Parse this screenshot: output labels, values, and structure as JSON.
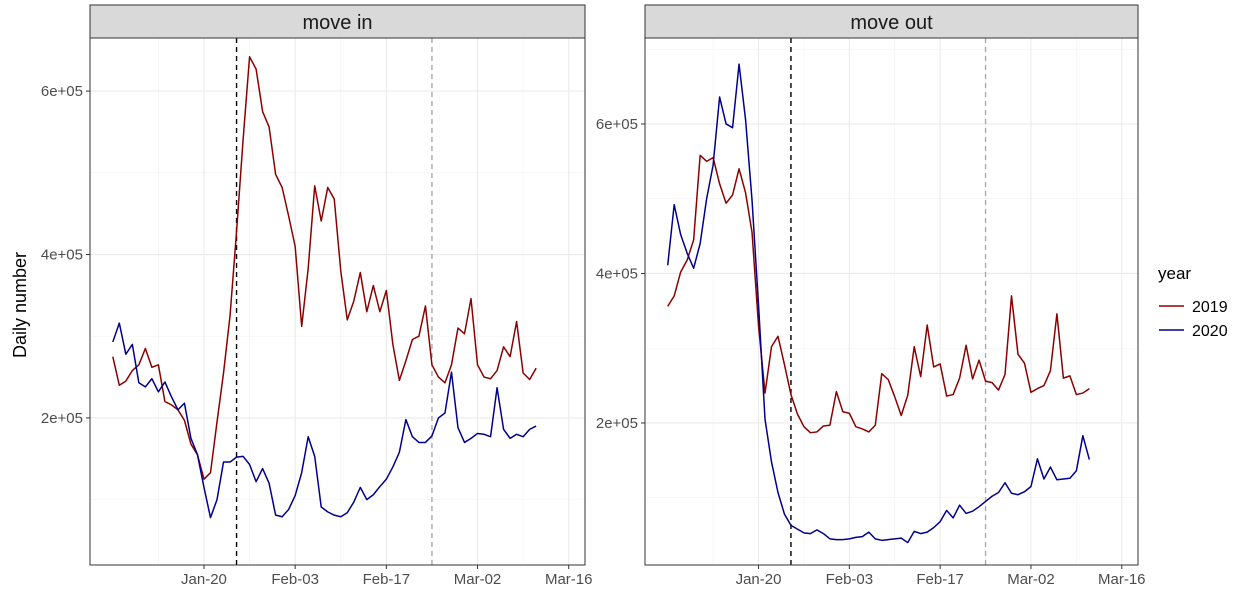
{
  "chart_data": {
    "type": "line",
    "ylabel": "Daily number",
    "legend": {
      "title": "year",
      "placement": "right",
      "entries": [
        {
          "name": "2019",
          "color": "#8B0000"
        },
        {
          "name": "2020",
          "color": "#00008B"
        }
      ]
    },
    "x_ticks": [
      {
        "label": "Jan-20",
        "day": 19
      },
      {
        "label": "Feb-03",
        "day": 33
      },
      {
        "label": "Feb-17",
        "day": 47
      },
      {
        "label": "Mar-02",
        "day": 61
      },
      {
        "label": "Mar-16",
        "day": 75
      }
    ],
    "xlim_day": [
      1.5,
      77.5
    ],
    "vlines": [
      {
        "day": 24,
        "color": "#000000",
        "style": "dashed"
      },
      {
        "day": 54,
        "color": "#AAAAAA",
        "style": "dashed"
      }
    ],
    "grid": true,
    "panels": [
      {
        "title": "move in",
        "ylim": [
          20000,
          665000
        ],
        "y_ticks": [
          {
            "label": "2e+05",
            "value": 200000
          },
          {
            "label": "4e+05",
            "value": 400000
          },
          {
            "label": "6e+05",
            "value": 600000
          }
        ],
        "series": [
          {
            "name": "2019",
            "color": "#8B0000",
            "start_day": 5,
            "values": [
              275000,
              240000,
              245000,
              258000,
              265000,
              285000,
              262000,
              265000,
              220000,
              216000,
              210000,
              197000,
              168000,
              155000,
              125000,
              133000,
              195000,
              255000,
              325000,
              428000,
              540000,
              642000,
              627000,
              575000,
              556000,
              498000,
              482000,
              447000,
              410000,
              312000,
              383000,
              484000,
              441000,
              482000,
              468000,
              380000,
              320000,
              343000,
              378000,
              330000,
              362000,
              330000,
              356000,
              290000,
              246000,
              270000,
              296000,
              300000,
              337000,
              265000,
              250000,
              243000,
              265000,
              310000,
              303000,
              346000,
              265000,
              250000,
              248000,
              258000,
              287000,
              275000,
              318000,
              255000,
              247000,
              261000
            ]
          },
          {
            "name": "2020",
            "color": "#00008B",
            "start_day": 5,
            "values": [
              293000,
              316000,
              278000,
              290000,
              243000,
              238000,
              248000,
              232000,
              244000,
              226000,
              210000,
              218000,
              175000,
              155000,
              115000,
              78000,
              100000,
              146000,
              146000,
              152000,
              153000,
              143000,
              122000,
              138000,
              120000,
              81000,
              79000,
              88000,
              105000,
              133000,
              177000,
              153000,
              91000,
              85000,
              81000,
              79000,
              84000,
              97000,
              115000,
              100000,
              106000,
              116000,
              125000,
              140000,
              158000,
              198000,
              177000,
              170000,
              170000,
              178000,
              200000,
              206000,
              256000,
              188000,
              170000,
              175000,
              181000,
              180000,
              177000,
              237000,
              186000,
              175000,
              180000,
              177000,
              186000,
              190000
            ]
          }
        ]
      },
      {
        "title": "move out",
        "ylim": [
          10000,
          715000
        ],
        "y_ticks": [
          {
            "label": "2e+05",
            "value": 200000
          },
          {
            "label": "4e+05",
            "value": 400000
          },
          {
            "label": "6e+05",
            "value": 600000
          }
        ],
        "series": [
          {
            "name": "2019",
            "color": "#8B0000",
            "start_day": 5,
            "values": [
              356000,
              370000,
              402000,
              418000,
              445000,
              558000,
              550000,
              555000,
              520000,
              494000,
              505000,
              540000,
              508000,
              455000,
              330000,
              240000,
              302000,
              316000,
              278000,
              238000,
              212000,
              195000,
              187000,
              188000,
              196000,
              197000,
              242000,
              215000,
              213000,
              195000,
              192000,
              188000,
              197000,
              266000,
              258000,
              235000,
              210000,
              237000,
              302000,
              262000,
              331000,
              275000,
              279000,
              236000,
              238000,
              260000,
              304000,
              259000,
              284000,
              256000,
              254000,
              244000,
              265000,
              370000,
              292000,
              280000,
              241000,
              246000,
              250000,
              270000,
              346000,
              260000,
              263000,
              238000,
              240000,
              246000
            ]
          },
          {
            "name": "2020",
            "color": "#00008B",
            "start_day": 5,
            "values": [
              411000,
              492000,
              452000,
              427000,
              407000,
              440000,
              500000,
              545000,
              636000,
              600000,
              595000,
              680000,
              606000,
              498000,
              358000,
              205000,
              148000,
              107000,
              78000,
              63000,
              58000,
              53000,
              52000,
              57000,
              52000,
              45000,
              44000,
              44000,
              45000,
              47000,
              48000,
              54000,
              45000,
              43000,
              44000,
              45000,
              46000,
              40000,
              55000,
              52000,
              54000,
              60000,
              68000,
              83000,
              73000,
              90000,
              79000,
              82000,
              88000,
              95000,
              102000,
              107000,
              120000,
              106000,
              104000,
              108000,
              115000,
              152000,
              125000,
              141000,
              124000,
              125000,
              126000,
              136000,
              183000,
              151000
            ]
          }
        ]
      }
    ]
  }
}
